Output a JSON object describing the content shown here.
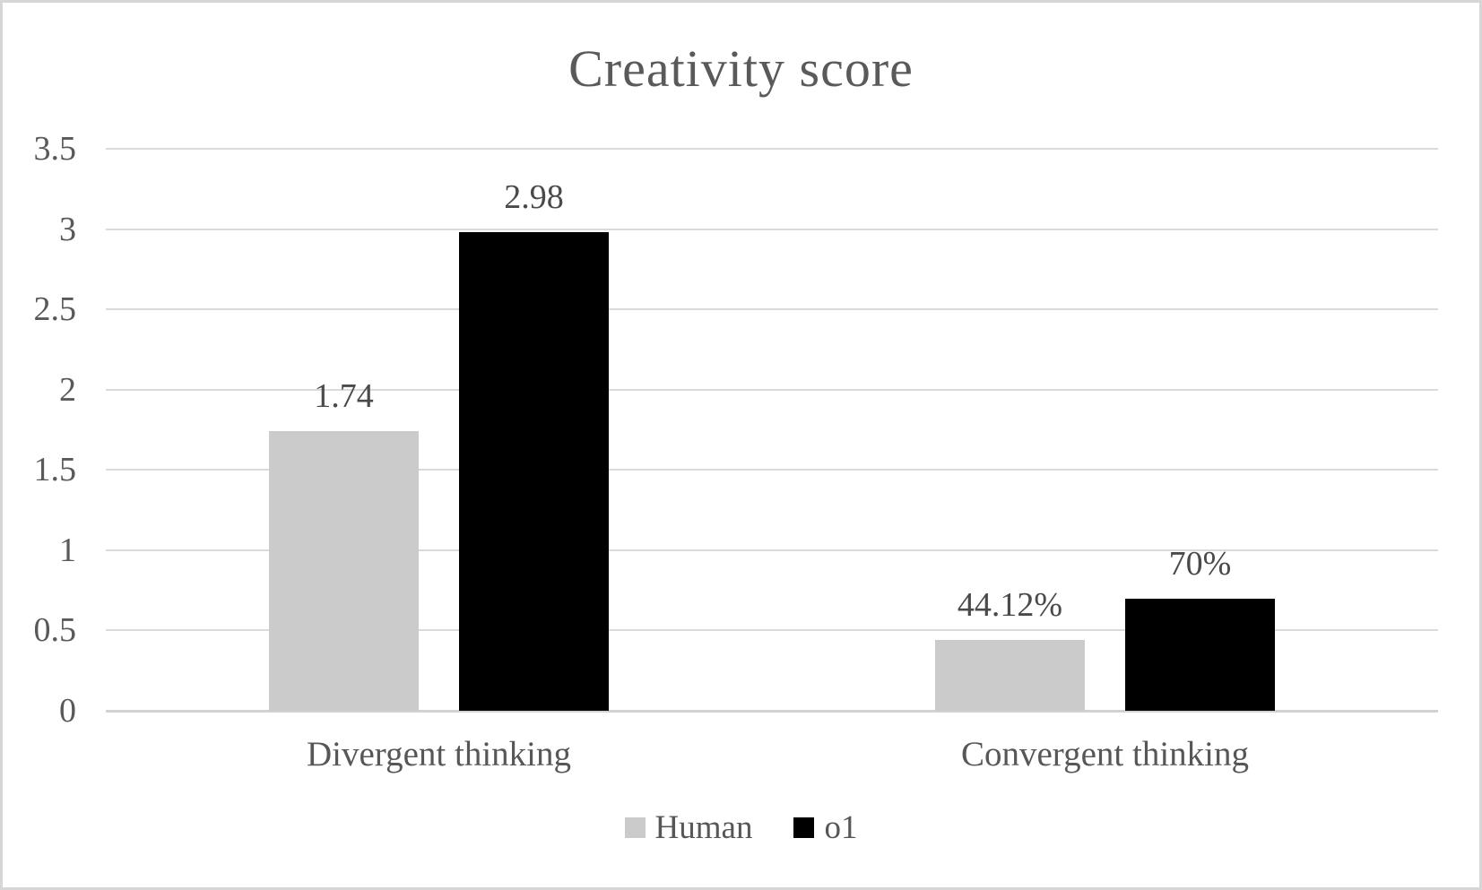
{
  "chart_data": {
    "type": "bar",
    "title": "Creativity score",
    "categories": [
      "Divergent thinking",
      "Convergent thinking"
    ],
    "series": [
      {
        "name": "Human",
        "color": "#cbcbcb",
        "values": [
          1.74,
          0.4412
        ],
        "value_labels": [
          "1.74",
          "44.12%"
        ]
      },
      {
        "name": "o1",
        "color": "#000000",
        "values": [
          2.98,
          0.7
        ],
        "value_labels": [
          "2.98",
          "70%"
        ]
      }
    ],
    "y_axis": {
      "min": 0,
      "max": 3.5,
      "step": 0.5,
      "tick_labels": [
        "3.5",
        "3",
        "2.5",
        "2",
        "1.5",
        "1",
        "0.5",
        "0"
      ]
    },
    "grid": true,
    "legend_position": "bottom",
    "colors": {
      "title_text": "#5a5a5a",
      "axis_text": "#595959",
      "data_label_text": "#4a4a4a",
      "gridline": "#dadada",
      "axis_line": "#d2d2d2",
      "frame_border": "#d6d6d6",
      "background": "#ffffff"
    }
  }
}
